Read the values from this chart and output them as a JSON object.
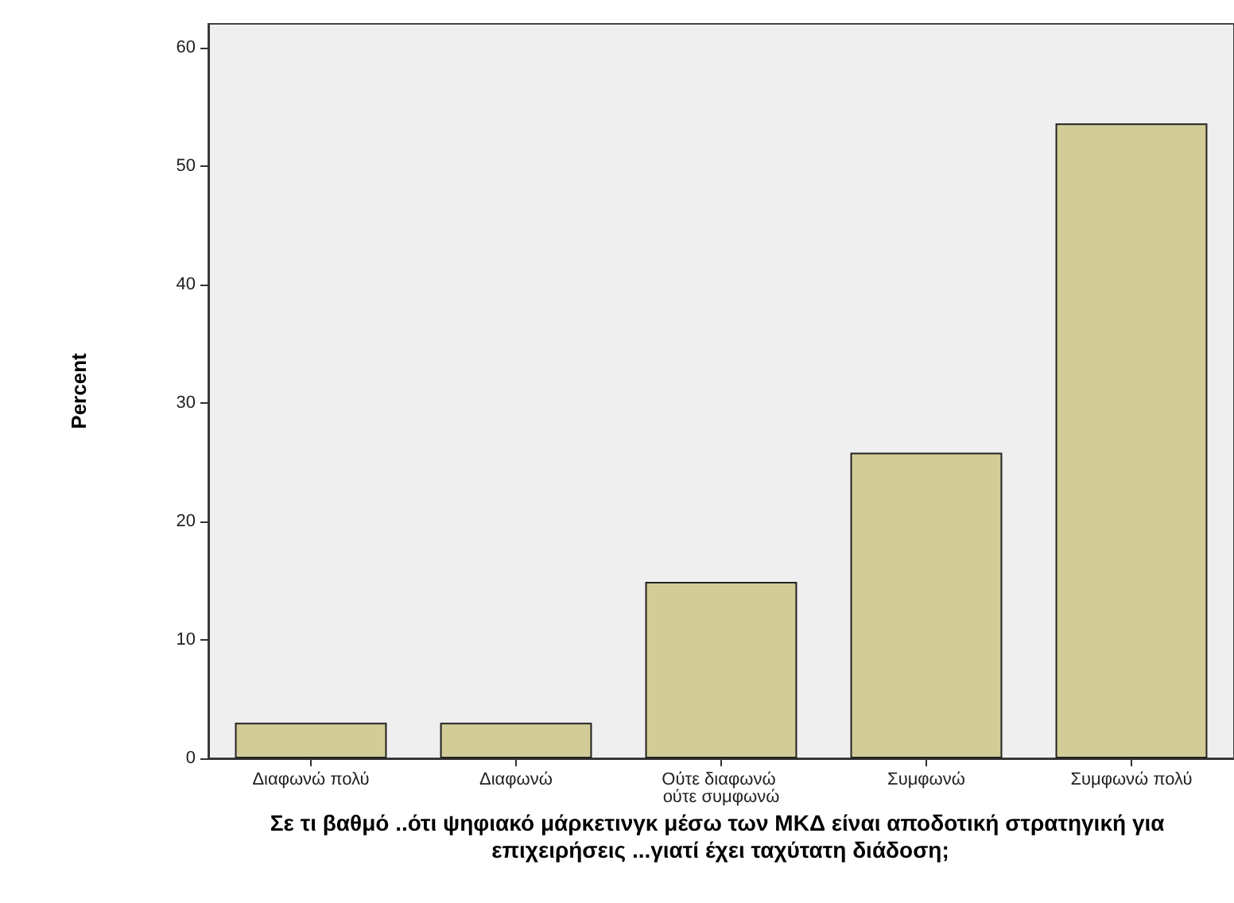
{
  "chart_data": {
    "type": "bar",
    "xlabel": "Σε τι βαθμό ..ότι ψηφιακό μάρκετινγκ μέσω των ΜΚΔ είναι αποδοτική στρατηγική για επιχειρήσεις ...γιατί έχει ταχύτατη διάδοση;",
    "ylabel": "Percent",
    "categories": [
      "Διαφωνώ πολύ",
      "Διαφωνώ",
      "Ούτε διαφωνώ ούτε συμφωνώ",
      "Συμφωνώ",
      "Συμφωνώ πολύ"
    ],
    "values": [
      3.0,
      3.0,
      14.9,
      25.8,
      53.6
    ],
    "color": "#d2cc98",
    "ylim": [
      0,
      62
    ],
    "yticks": [
      0,
      10,
      20,
      30,
      40,
      50,
      60
    ],
    "grid": false
  }
}
